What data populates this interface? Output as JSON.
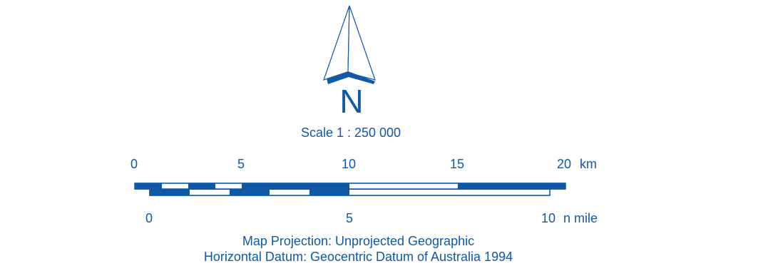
{
  "north": {
    "letter": "N",
    "icon": "north-arrow-icon"
  },
  "scale": {
    "text": "Scale 1 : 250 000",
    "ratio": 250000
  },
  "km_scale": {
    "ticks": [
      "0",
      "5",
      "10",
      "15",
      "20"
    ],
    "unit": "km",
    "max": 20
  },
  "nmile_scale": {
    "ticks": [
      "0",
      "5",
      "10"
    ],
    "unit": "n mile",
    "max": 10
  },
  "footer": {
    "projection": "Map Projection:  Unprojected Geographic",
    "datum": "Horizontal Datum:  Geocentric Datum of Australia 1994"
  },
  "colors": {
    "primary": "#1158a6",
    "background": "#ffffff"
  }
}
